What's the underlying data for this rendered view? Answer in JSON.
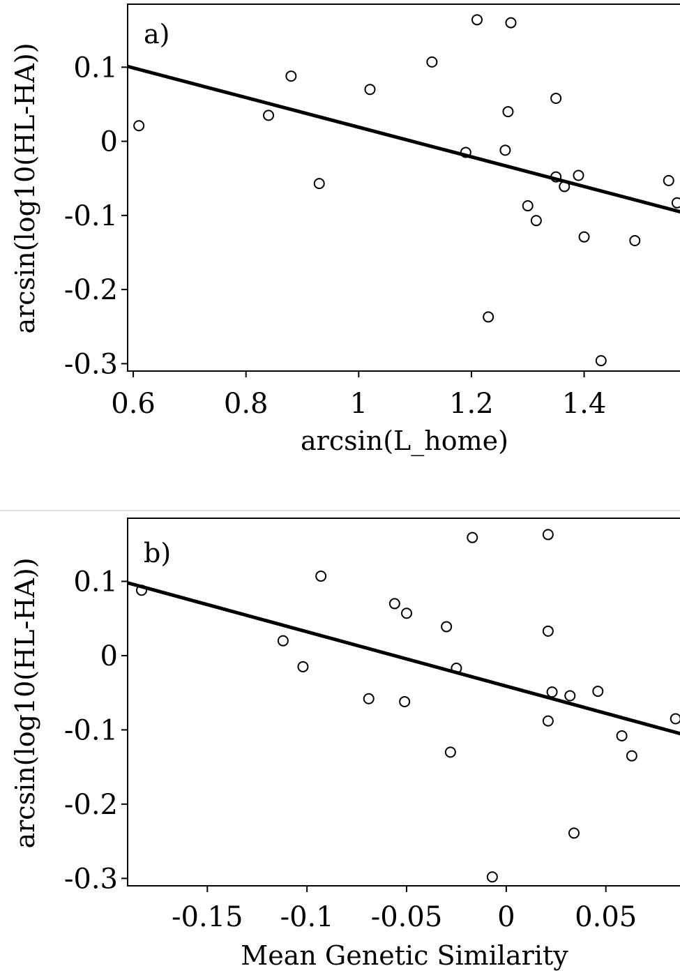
{
  "chart_data": [
    {
      "type": "scatter",
      "panel_label": "a)",
      "xlabel": "arcsin(L_home)",
      "ylabel": "arcsin(log10(HL-HA))",
      "xlim": [
        0.59,
        1.58
      ],
      "ylim": [
        -0.31,
        0.185
      ],
      "xticks": [
        0.6,
        0.8,
        1,
        1.2,
        1.4
      ],
      "xtick_labels": [
        "0.6",
        "0.8",
        "1",
        "1.2",
        "1.4"
      ],
      "yticks": [
        0.1,
        0,
        -0.1,
        -0.2,
        -0.3
      ],
      "ytick_labels": [
        "0.1",
        "0",
        "-0.1",
        "-0.2",
        "-0.3"
      ],
      "fit_line": {
        "x": [
          0.59,
          1.58
        ],
        "y": [
          0.101,
          -0.097
        ]
      },
      "points": [
        {
          "x": 0.61,
          "y": 0.021
        },
        {
          "x": 0.84,
          "y": 0.035
        },
        {
          "x": 0.88,
          "y": 0.088
        },
        {
          "x": 0.93,
          "y": -0.057
        },
        {
          "x": 1.02,
          "y": 0.07
        },
        {
          "x": 1.13,
          "y": 0.107
        },
        {
          "x": 1.19,
          "y": -0.015
        },
        {
          "x": 1.21,
          "y": 0.164
        },
        {
          "x": 1.23,
          "y": -0.237
        },
        {
          "x": 1.26,
          "y": -0.012
        },
        {
          "x": 1.265,
          "y": 0.04
        },
        {
          "x": 1.27,
          "y": 0.16
        },
        {
          "x": 1.3,
          "y": -0.087
        },
        {
          "x": 1.315,
          "y": -0.107
        },
        {
          "x": 1.35,
          "y": 0.058
        },
        {
          "x": 1.35,
          "y": -0.048
        },
        {
          "x": 1.365,
          "y": -0.061
        },
        {
          "x": 1.39,
          "y": -0.046
        },
        {
          "x": 1.4,
          "y": -0.129
        },
        {
          "x": 1.43,
          "y": -0.296
        },
        {
          "x": 1.49,
          "y": -0.134
        },
        {
          "x": 1.55,
          "y": -0.053
        },
        {
          "x": 1.565,
          "y": -0.083
        }
      ]
    },
    {
      "type": "scatter",
      "panel_label": "b)",
      "xlabel": "Mean Genetic Similarity",
      "ylabel": "arcsin(log10(HL-HA))",
      "xlim": [
        -0.19,
        0.09
      ],
      "ylim": [
        -0.31,
        0.185
      ],
      "xticks": [
        -0.15,
        -0.1,
        -0.05,
        0,
        0.05
      ],
      "xtick_labels": [
        "-0.15",
        "-0.1",
        "-0.05",
        "0",
        "0.05"
      ],
      "yticks": [
        0.1,
        0,
        -0.1,
        -0.2,
        -0.3
      ],
      "ytick_labels": [
        "0.1",
        "0",
        "-0.1",
        "-0.2",
        "-0.3"
      ],
      "fit_line": {
        "x": [
          -0.19,
          0.09
        ],
        "y": [
          0.098,
          -0.107
        ]
      },
      "points": [
        {
          "x": -0.183,
          "y": 0.088
        },
        {
          "x": -0.112,
          "y": 0.02
        },
        {
          "x": -0.102,
          "y": -0.015
        },
        {
          "x": -0.093,
          "y": 0.107
        },
        {
          "x": -0.069,
          "y": -0.058
        },
        {
          "x": -0.056,
          "y": 0.07
        },
        {
          "x": -0.051,
          "y": -0.062
        },
        {
          "x": -0.05,
          "y": 0.057
        },
        {
          "x": -0.03,
          "y": 0.039
        },
        {
          "x": -0.028,
          "y": -0.13
        },
        {
          "x": -0.025,
          "y": -0.017
        },
        {
          "x": -0.017,
          "y": 0.159
        },
        {
          "x": -0.007,
          "y": -0.298
        },
        {
          "x": 0.021,
          "y": 0.033
        },
        {
          "x": 0.021,
          "y": -0.088
        },
        {
          "x": 0.021,
          "y": 0.163
        },
        {
          "x": 0.023,
          "y": -0.049
        },
        {
          "x": 0.032,
          "y": -0.054
        },
        {
          "x": 0.034,
          "y": -0.239
        },
        {
          "x": 0.046,
          "y": -0.048
        },
        {
          "x": 0.058,
          "y": -0.108
        },
        {
          "x": 0.063,
          "y": -0.135
        },
        {
          "x": 0.085,
          "y": -0.085
        }
      ]
    }
  ]
}
